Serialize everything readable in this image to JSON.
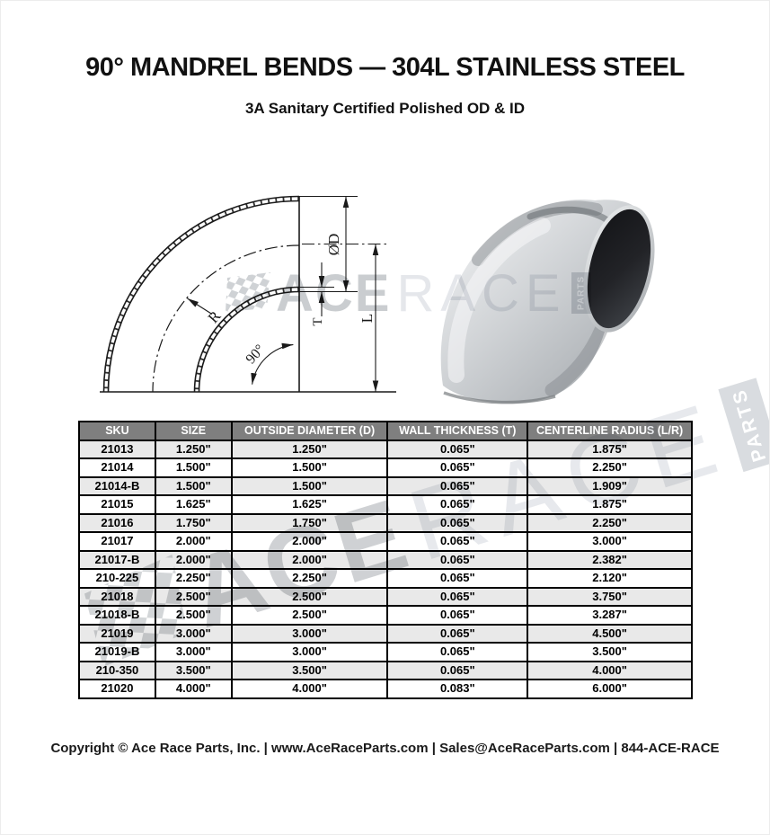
{
  "page": {
    "title": "90° MANDREL BENDS — 304L STAINLESS STEEL",
    "subtitle": "3A Sanitary Certified Polished OD & ID",
    "footer": "Copyright © Ace Race Parts, Inc. | www.AceRaceParts.com | Sales@AceRaceParts.com | 844-ACE-RACE"
  },
  "watermark": {
    "brand_primary": "ACE",
    "brand_secondary": "RACE",
    "brand_tab": "PARTS"
  },
  "diagram": {
    "labels": {
      "radius": "R",
      "angle": "90°",
      "diameter": "ØD",
      "thickness": "T",
      "length": "L"
    }
  },
  "table": {
    "columns": [
      "SKU",
      "SIZE",
      "OUTSIDE DIAMETER (D)",
      "WALL THICKNESS (T)",
      "CENTERLINE RADIUS (L/R)"
    ],
    "column_keys": [
      "sku",
      "size",
      "outside_diameter",
      "wall_thickness",
      "centerline_radius"
    ],
    "rows": [
      [
        "21013",
        "1.250\"",
        "1.250\"",
        "0.065\"",
        "1.875\""
      ],
      [
        "21014",
        "1.500\"",
        "1.500\"",
        "0.065\"",
        "2.250\""
      ],
      [
        "21014-B",
        "1.500\"",
        "1.500\"",
        "0.065\"",
        "1.909\""
      ],
      [
        "21015",
        "1.625\"",
        "1.625\"",
        "0.065\"",
        "1.875\""
      ],
      [
        "21016",
        "1.750\"",
        "1.750\"",
        "0.065\"",
        "2.250\""
      ],
      [
        "21017",
        "2.000\"",
        "2.000\"",
        "0.065\"",
        "3.000\""
      ],
      [
        "21017-B",
        "2.000\"",
        "2.000\"",
        "0.065\"",
        "2.382\""
      ],
      [
        "210-225",
        "2.250\"",
        "2.250\"",
        "0.065\"",
        "2.120\""
      ],
      [
        "21018",
        "2.500\"",
        "2.500\"",
        "0.065\"",
        "3.750\""
      ],
      [
        "21018-B",
        "2.500\"",
        "2.500\"",
        "0.065\"",
        "3.287\""
      ],
      [
        "21019",
        "3.000\"",
        "3.000\"",
        "0.065\"",
        "4.500\""
      ],
      [
        "21019-B",
        "3.000\"",
        "3.000\"",
        "0.065\"",
        "3.500\""
      ],
      [
        "210-350",
        "3.500\"",
        "3.500\"",
        "0.065\"",
        "4.000\""
      ],
      [
        "21020",
        "4.000\"",
        "4.000\"",
        "0.083\"",
        "6.000\""
      ]
    ]
  },
  "colors": {
    "table_header_bg": "#7f7f7f",
    "table_header_text": "#ffffff",
    "table_row_stripe": "#e9e9e9",
    "table_border": "#000000",
    "watermark_dark": "#9fa4a9",
    "watermark_light": "#cfd4db",
    "drawing_line": "#1a1a1a"
  }
}
